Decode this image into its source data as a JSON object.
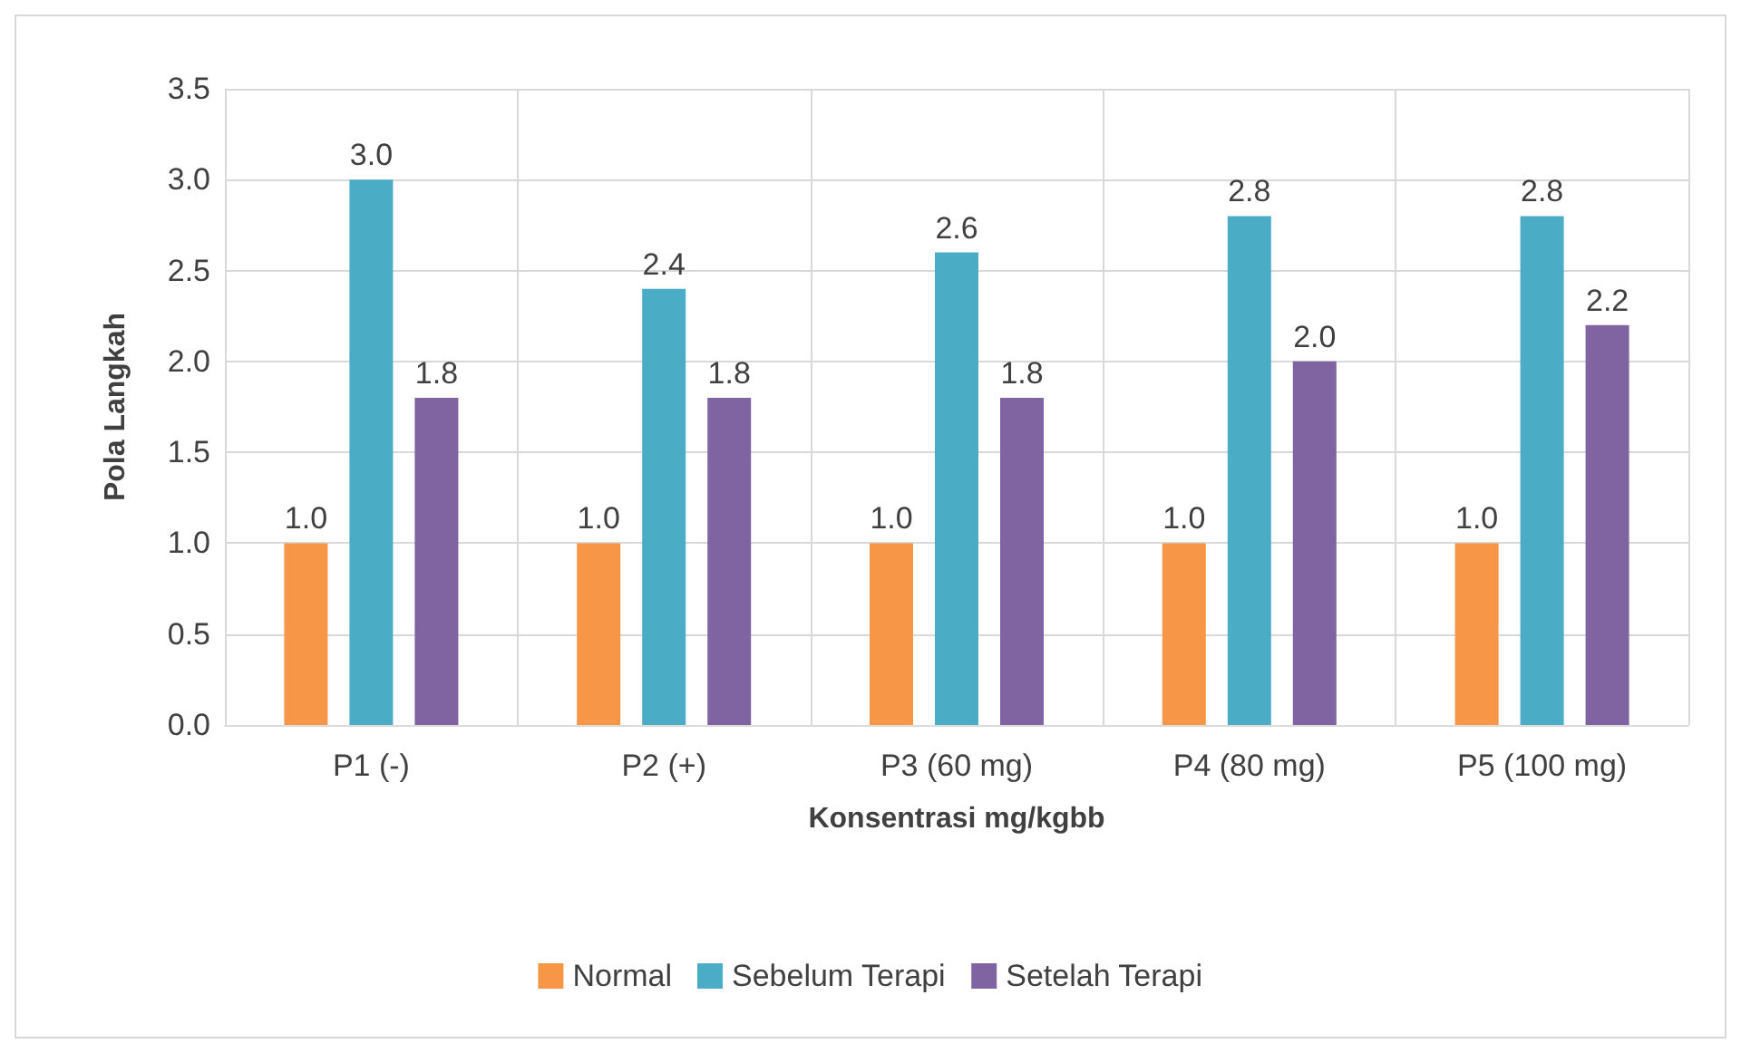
{
  "chart_data": {
    "type": "bar",
    "xlabel": "Konsentrasi mg/kgbb",
    "ylabel": "Pola Langkah",
    "categories": [
      "P1 (-)",
      "P2 (+)",
      "P3 (60 mg)",
      "P4 (80 mg)",
      "P5 (100 mg)"
    ],
    "series": [
      {
        "name": "Normal",
        "color": "#f79646",
        "values": [
          1.0,
          1.0,
          1.0,
          1.0,
          1.0
        ],
        "value_labels": [
          "1.0",
          "1.0",
          "1.0",
          "1.0",
          "1.0"
        ]
      },
      {
        "name": "Sebelum Terapi",
        "color": "#4bacc6",
        "values": [
          3.0,
          2.4,
          2.6,
          2.8,
          2.8
        ],
        "value_labels": [
          "3.0",
          "2.4",
          "2.6",
          "2.8",
          "2.8"
        ]
      },
      {
        "name": "Setelah Terapi",
        "color": "#8064a2",
        "values": [
          1.8,
          1.8,
          1.8,
          2.0,
          2.2
        ],
        "value_labels": [
          "1.8",
          "1.8",
          "1.8",
          "2.0",
          "2.2"
        ]
      }
    ],
    "ylim": [
      0,
      3.5
    ],
    "yticks": [
      "0.0",
      "0.5",
      "1.0",
      "1.5",
      "2.0",
      "2.5",
      "3.0",
      "3.5"
    ],
    "grid": true,
    "legend": "bottom"
  }
}
